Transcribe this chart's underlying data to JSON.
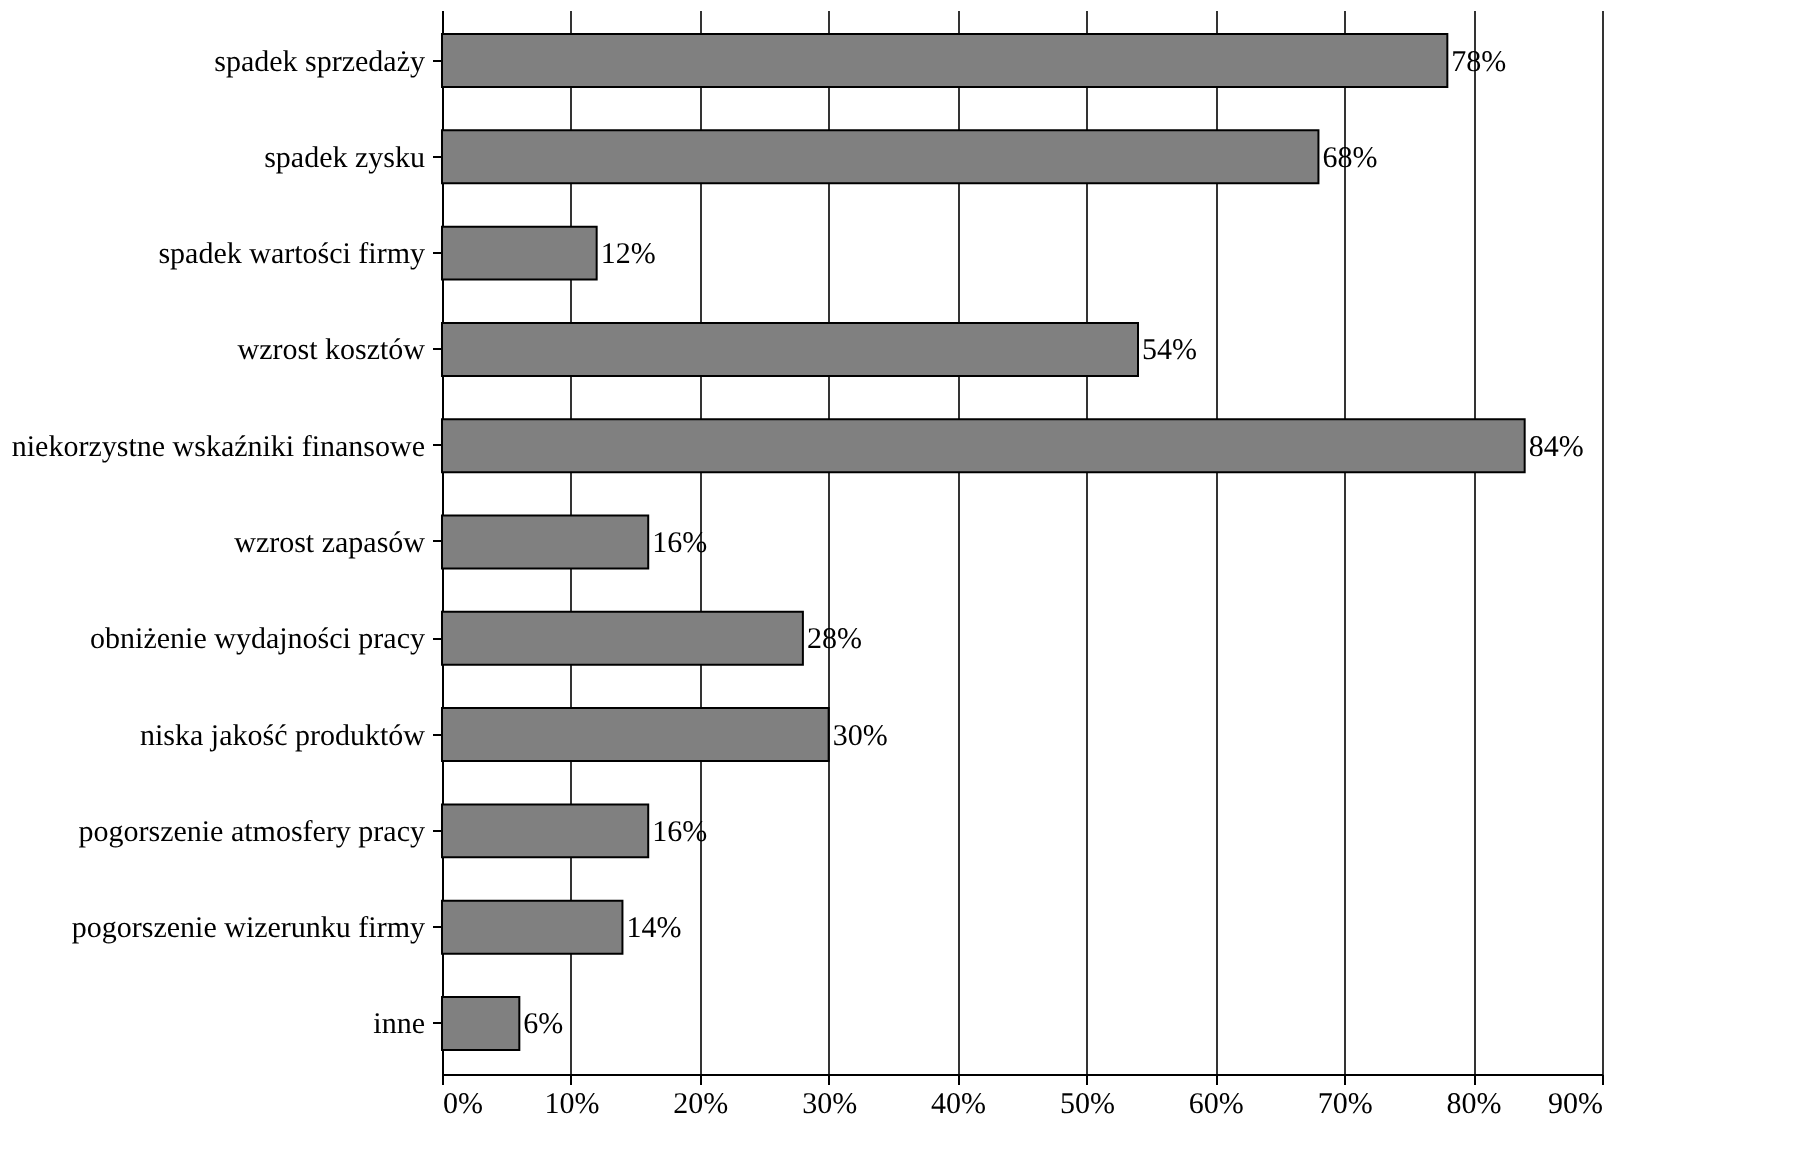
{
  "chart_data": {
    "type": "bar",
    "orientation": "horizontal",
    "categories": [
      "spadek sprzedaży",
      "spadek zysku",
      "spadek wartości firmy",
      "wzrost kosztów",
      "niekorzystne wskaźniki finansowe",
      "wzrost zapasów",
      "obniżenie wydajności pracy",
      "niska jakość produktów",
      "pogorszenie atmosfery pracy",
      "pogorszenie wizerunku firmy",
      "inne"
    ],
    "values": [
      78,
      68,
      12,
      54,
      84,
      16,
      28,
      30,
      16,
      14,
      6
    ],
    "value_labels": [
      "78%",
      "68%",
      "12%",
      "54%",
      "84%",
      "16%",
      "28%",
      "30%",
      "16%",
      "14%",
      "6%"
    ],
    "color": "#808080",
    "xlim": [
      0,
      90
    ],
    "xticks": [
      {
        "value": 0,
        "label": "0%"
      },
      {
        "value": 10,
        "label": "10%"
      },
      {
        "value": 20,
        "label": "20%"
      },
      {
        "value": 30,
        "label": "30%"
      },
      {
        "value": 40,
        "label": "40%"
      },
      {
        "value": 50,
        "label": "50%"
      },
      {
        "value": 60,
        "label": "60%"
      },
      {
        "value": 70,
        "label": "70%"
      },
      {
        "value": 80,
        "label": "80%"
      },
      {
        "value": 90,
        "label": "90%"
      }
    ],
    "grid": "x"
  }
}
